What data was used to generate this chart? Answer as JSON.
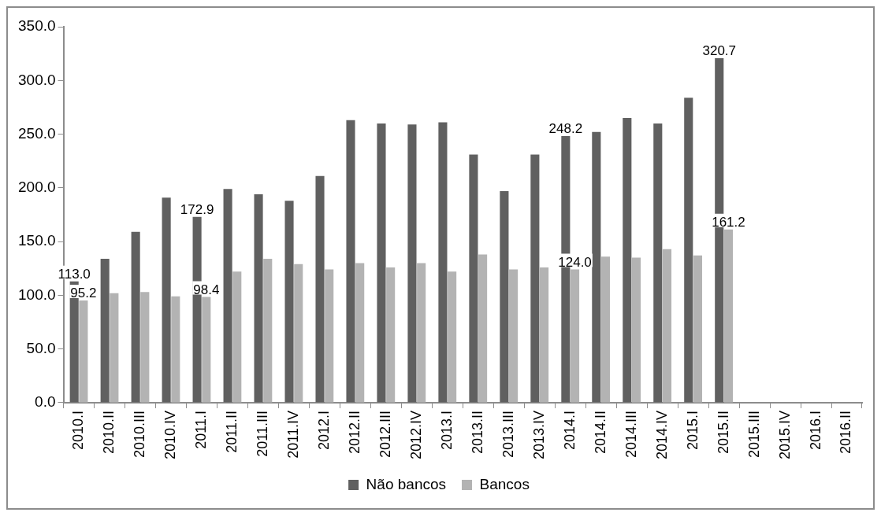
{
  "chart_data": {
    "type": "bar",
    "categories": [
      "2010.I",
      "2010.II",
      "2010.III",
      "2010.IV",
      "2011.I",
      "2011.II",
      "2011.III",
      "2011.IV",
      "2012.I",
      "2012.II",
      "2012.III",
      "2012.IV",
      "2013.I",
      "2013.II",
      "2013.III",
      "2013.IV",
      "2014.I",
      "2014.II",
      "2014.III",
      "2014.IV",
      "2015.I",
      "2015.II",
      "2015.III",
      "2015.IV",
      "2016.I",
      "2016.II"
    ],
    "series": [
      {
        "name": "Não bancos",
        "color": "#606060",
        "values": [
          113.0,
          134,
          159,
          191,
          172.9,
          199,
          194,
          188,
          211,
          263,
          260,
          259,
          261,
          231,
          197,
          231,
          248.2,
          252,
          265,
          260,
          284,
          320.7,
          null,
          null,
          null,
          null
        ],
        "value_labels": [
          "113.0",
          null,
          null,
          null,
          "172.9",
          null,
          null,
          null,
          null,
          null,
          null,
          null,
          null,
          null,
          null,
          null,
          "248.2",
          null,
          null,
          null,
          null,
          "320.7",
          null,
          null,
          null,
          null
        ]
      },
      {
        "name": "Bancos",
        "color": "#b3b3b3",
        "values": [
          95.2,
          102,
          103,
          99,
          98.4,
          122,
          134,
          129,
          124,
          130,
          126,
          130,
          122,
          138,
          124,
          126,
          124.0,
          136,
          135,
          143,
          137,
          161.2,
          null,
          null,
          null,
          null
        ],
        "value_labels": [
          "95.2",
          null,
          null,
          null,
          "98.4",
          null,
          null,
          null,
          null,
          null,
          null,
          null,
          null,
          null,
          null,
          null,
          "124.0",
          null,
          null,
          null,
          null,
          "161.2",
          null,
          null,
          null,
          null
        ]
      }
    ],
    "ylim": [
      0,
      350
    ],
    "yticks": [
      {
        "value": 0,
        "label": "0.0"
      },
      {
        "value": 50,
        "label": "50.0"
      },
      {
        "value": 100,
        "label": "100.0"
      },
      {
        "value": 150,
        "label": "150.0"
      },
      {
        "value": 200,
        "label": "200.0"
      },
      {
        "value": 250,
        "label": "250.0"
      },
      {
        "value": 300,
        "label": "300.0"
      },
      {
        "value": 350,
        "label": "350.0"
      }
    ],
    "grid": false,
    "legend": "bottom"
  }
}
